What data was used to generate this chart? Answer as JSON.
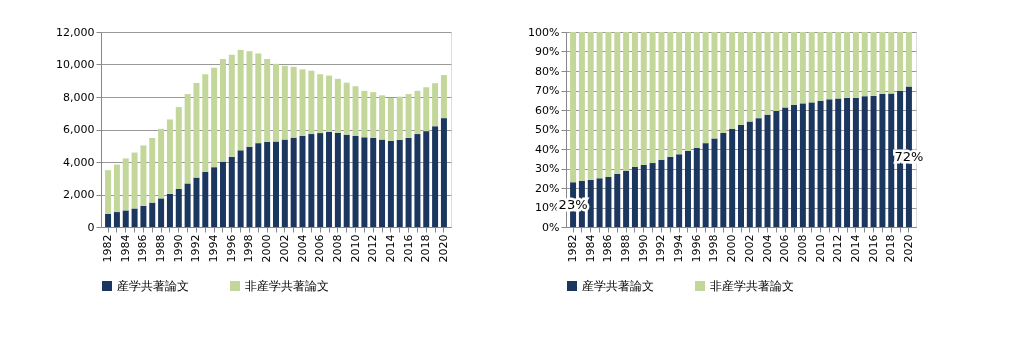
{
  "chart_data": [
    {
      "type": "bar",
      "stacked": true,
      "grid": "y",
      "legend": "bottom",
      "categories": [
        "1982",
        null,
        "1984",
        null,
        "1986",
        null,
        "1988",
        null,
        "1990",
        null,
        "1992",
        null,
        "1994",
        null,
        "1996",
        null,
        "1998",
        null,
        "2000",
        null,
        "2002",
        null,
        "2004",
        null,
        "2006",
        null,
        "2008",
        null,
        "2010",
        null,
        "2012",
        null,
        "2014",
        null,
        "2016",
        null,
        "2018",
        null,
        "2020"
      ],
      "ylim": [
        0,
        12000
      ],
      "yticks": [
        {
          "value": 0,
          "label": "0"
        },
        {
          "value": 2000,
          "label": "2,000"
        },
        {
          "value": 4000,
          "label": "4,000"
        },
        {
          "value": 6000,
          "label": "6,000"
        },
        {
          "value": 8000,
          "label": "8,000"
        },
        {
          "value": 10000,
          "label": "10,000"
        },
        {
          "value": 12000,
          "label": "12,000"
        }
      ],
      "series": [
        {
          "name": "産学共著論文",
          "color": "#1b375f",
          "values": [
            800,
            920,
            1020,
            1140,
            1300,
            1500,
            1760,
            2040,
            2340,
            2680,
            3040,
            3400,
            3680,
            4020,
            4320,
            4720,
            4940,
            5160,
            5240,
            5260,
            5380,
            5500,
            5600,
            5720,
            5780,
            5860,
            5800,
            5680,
            5600,
            5520,
            5480,
            5380,
            5300,
            5360,
            5480,
            5720,
            5900,
            6200,
            6700
          ]
        },
        {
          "name": "非産学共著論文",
          "color": "#c4d79b",
          "values": [
            2700,
            2920,
            3200,
            3440,
            3720,
            3980,
            4280,
            4580,
            5040,
            5500,
            5820,
            6000,
            6120,
            6320,
            6280,
            6180,
            5880,
            5520,
            5100,
            4780,
            4540,
            4360,
            4100,
            3900,
            3620,
            3460,
            3320,
            3200,
            3060,
            2860,
            2820,
            2720,
            2640,
            2660,
            2700,
            2660,
            2700,
            2650,
            2650
          ]
        }
      ]
    },
    {
      "type": "bar",
      "stacked": true,
      "grid": "y",
      "legend": "bottom",
      "categories": [
        "1982",
        null,
        "1984",
        null,
        "1986",
        null,
        "1988",
        null,
        "1990",
        null,
        "1992",
        null,
        "1994",
        null,
        "1996",
        null,
        "1998",
        null,
        "2000",
        null,
        "2002",
        null,
        "2004",
        null,
        "2006",
        null,
        "2008",
        null,
        "2010",
        null,
        "2012",
        null,
        "2014",
        null,
        "2016",
        null,
        "2018",
        null,
        "2020"
      ],
      "ylim": [
        0,
        100
      ],
      "yticks": [
        {
          "value": 0,
          "label": "0%"
        },
        {
          "value": 10,
          "label": "10%"
        },
        {
          "value": 20,
          "label": "20%"
        },
        {
          "value": 30,
          "label": "30%"
        },
        {
          "value": 40,
          "label": "40%"
        },
        {
          "value": 50,
          "label": "50%"
        },
        {
          "value": 60,
          "label": "60%"
        },
        {
          "value": 70,
          "label": "70%"
        },
        {
          "value": 80,
          "label": "80%"
        },
        {
          "value": 90,
          "label": "90%"
        },
        {
          "value": 100,
          "label": "100%"
        }
      ],
      "series": [
        {
          "name": "産学共著論文",
          "color": "#1b375f",
          "values": [
            23,
            23.7,
            24.2,
            25,
            25.7,
            27.2,
            28.9,
            30.8,
            31.8,
            32.8,
            34.5,
            36,
            37.3,
            39,
            40.5,
            43,
            45.4,
            48.2,
            50.4,
            52.3,
            54.1,
            55.8,
            57.6,
            59.5,
            61.3,
            62.7,
            63.4,
            63.9,
            64.7,
            65.5,
            65.9,
            66.2,
            66.2,
            67.1,
            67.2,
            68.2,
            68.4,
            69.9,
            72
          ],
          "value_labels": [
            "23%",
            null,
            null,
            null,
            null,
            null,
            null,
            null,
            null,
            null,
            null,
            null,
            null,
            null,
            null,
            null,
            null,
            null,
            null,
            null,
            null,
            null,
            null,
            null,
            null,
            null,
            null,
            null,
            null,
            null,
            null,
            null,
            null,
            null,
            null,
            null,
            null,
            null,
            "72%"
          ]
        },
        {
          "name": "非産学共著論文",
          "color": "#c4d79b",
          "values": [
            77,
            76.3,
            75.8,
            75,
            74.3,
            72.8,
            71.1,
            69.2,
            68.2,
            67.2,
            65.5,
            64,
            62.7,
            61,
            59.5,
            57,
            54.6,
            51.8,
            49.6,
            47.7,
            45.9,
            44.2,
            42.4,
            40.5,
            38.7,
            37.3,
            36.6,
            36.1,
            35.3,
            34.5,
            34.1,
            33.8,
            33.8,
            32.9,
            32.8,
            31.8,
            31.6,
            30.1,
            28
          ]
        }
      ]
    }
  ]
}
